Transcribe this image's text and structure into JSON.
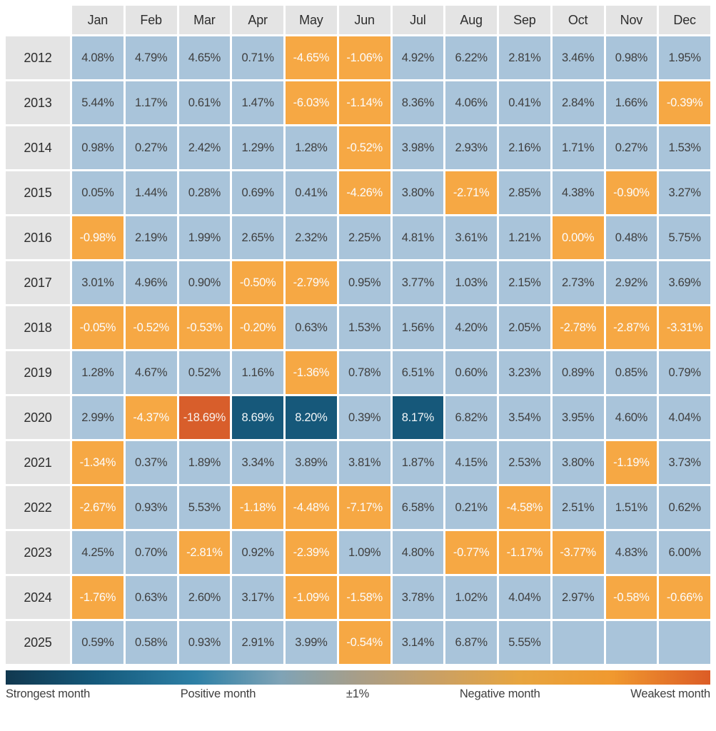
{
  "chart_data": {
    "type": "heatmap",
    "unit": "%",
    "columns": [
      "Jan",
      "Feb",
      "Mar",
      "Apr",
      "May",
      "Jun",
      "Jul",
      "Aug",
      "Sep",
      "Oct",
      "Nov",
      "Dec"
    ],
    "rows": [
      {
        "year": "2012",
        "values": [
          4.08,
          4.79,
          4.65,
          0.71,
          -4.65,
          -1.06,
          4.92,
          6.22,
          2.81,
          3.46,
          0.98,
          1.95
        ],
        "tones": [
          "pos",
          "pos",
          "pos",
          "pos",
          "neg",
          "neg",
          "pos",
          "pos",
          "pos",
          "pos",
          "pos",
          "pos"
        ]
      },
      {
        "year": "2013",
        "values": [
          5.44,
          1.17,
          0.61,
          1.47,
          -6.03,
          -1.14,
          8.36,
          4.06,
          0.41,
          2.84,
          1.66,
          -0.39
        ],
        "tones": [
          "pos",
          "pos",
          "pos",
          "pos",
          "neg",
          "neg",
          "pos",
          "pos",
          "pos",
          "pos",
          "pos",
          "neg"
        ]
      },
      {
        "year": "2014",
        "values": [
          0.98,
          0.27,
          2.42,
          1.29,
          1.28,
          -0.52,
          3.98,
          2.93,
          2.16,
          1.71,
          0.27,
          1.53
        ],
        "tones": [
          "pos",
          "pos",
          "pos",
          "pos",
          "pos",
          "neg",
          "pos",
          "pos",
          "pos",
          "pos",
          "pos",
          "pos"
        ]
      },
      {
        "year": "2015",
        "values": [
          0.05,
          1.44,
          0.28,
          0.69,
          0.41,
          -4.26,
          3.8,
          -2.71,
          2.85,
          4.38,
          -0.9,
          3.27
        ],
        "tones": [
          "pos",
          "pos",
          "pos",
          "pos",
          "pos",
          "neg",
          "pos",
          "neg",
          "pos",
          "pos",
          "neg",
          "pos"
        ]
      },
      {
        "year": "2016",
        "values": [
          -0.98,
          2.19,
          1.99,
          2.65,
          2.32,
          2.25,
          4.81,
          3.61,
          1.21,
          0.0,
          0.48,
          5.75
        ],
        "tones": [
          "neg",
          "pos",
          "pos",
          "pos",
          "pos",
          "pos",
          "pos",
          "pos",
          "pos",
          "neg",
          "pos",
          "pos"
        ]
      },
      {
        "year": "2017",
        "values": [
          3.01,
          4.96,
          0.9,
          -0.5,
          -2.79,
          0.95,
          3.77,
          1.03,
          2.15,
          2.73,
          2.92,
          3.69
        ],
        "tones": [
          "pos",
          "pos",
          "pos",
          "neg",
          "neg",
          "pos",
          "pos",
          "pos",
          "pos",
          "pos",
          "pos",
          "pos"
        ]
      },
      {
        "year": "2018",
        "values": [
          -0.05,
          -0.52,
          -0.53,
          -0.2,
          0.63,
          1.53,
          1.56,
          4.2,
          2.05,
          -2.78,
          -2.87,
          -3.31
        ],
        "tones": [
          "neg",
          "neg",
          "neg",
          "neg",
          "pos",
          "pos",
          "pos",
          "pos",
          "pos",
          "neg",
          "neg",
          "neg"
        ]
      },
      {
        "year": "2019",
        "values": [
          1.28,
          4.67,
          0.52,
          1.16,
          -1.36,
          0.78,
          6.51,
          0.6,
          3.23,
          0.89,
          0.85,
          0.79
        ],
        "tones": [
          "pos",
          "pos",
          "pos",
          "pos",
          "neg",
          "pos",
          "pos",
          "pos",
          "pos",
          "pos",
          "pos",
          "pos"
        ]
      },
      {
        "year": "2020",
        "values": [
          2.99,
          -4.37,
          -18.69,
          8.69,
          8.2,
          0.39,
          8.17,
          6.82,
          3.54,
          3.95,
          4.6,
          4.04
        ],
        "tones": [
          "pos",
          "neg",
          "weak",
          "strong",
          "strong",
          "pos",
          "strong",
          "pos",
          "pos",
          "pos",
          "pos",
          "pos"
        ]
      },
      {
        "year": "2021",
        "values": [
          -1.34,
          0.37,
          1.89,
          3.34,
          3.89,
          3.81,
          1.87,
          4.15,
          2.53,
          3.8,
          -1.19,
          3.73
        ],
        "tones": [
          "neg",
          "pos",
          "pos",
          "pos",
          "pos",
          "pos",
          "pos",
          "pos",
          "pos",
          "pos",
          "neg",
          "pos"
        ]
      },
      {
        "year": "2022",
        "values": [
          -2.67,
          0.93,
          5.53,
          -1.18,
          -4.48,
          -7.17,
          6.58,
          0.21,
          -4.58,
          2.51,
          1.51,
          0.62
        ],
        "tones": [
          "neg",
          "pos",
          "pos",
          "neg",
          "neg",
          "neg",
          "pos",
          "pos",
          "neg",
          "pos",
          "pos",
          "pos"
        ]
      },
      {
        "year": "2023",
        "values": [
          4.25,
          0.7,
          -2.81,
          0.92,
          -2.39,
          1.09,
          4.8,
          -0.77,
          -1.17,
          -3.77,
          4.83,
          6.0
        ],
        "tones": [
          "pos",
          "pos",
          "neg",
          "pos",
          "neg",
          "pos",
          "pos",
          "neg",
          "neg",
          "neg",
          "pos",
          "pos"
        ]
      },
      {
        "year": "2024",
        "values": [
          -1.76,
          0.63,
          2.6,
          3.17,
          -1.09,
          -1.58,
          3.78,
          1.02,
          4.04,
          2.97,
          -0.58,
          -0.66
        ],
        "tones": [
          "neg",
          "pos",
          "pos",
          "pos",
          "neg",
          "neg",
          "pos",
          "pos",
          "pos",
          "pos",
          "neg",
          "neg"
        ]
      },
      {
        "year": "2025",
        "values": [
          0.59,
          0.58,
          0.93,
          2.91,
          3.99,
          -0.54,
          3.14,
          6.87,
          5.55,
          null,
          null,
          null
        ],
        "tones": [
          "pos",
          "pos",
          "pos",
          "pos",
          "pos",
          "neg",
          "pos",
          "pos",
          "pos",
          "empty",
          "empty",
          "empty"
        ]
      }
    ]
  },
  "legend": {
    "labels": [
      "Strongest month",
      "Positive month",
      "±1%",
      "Negative month",
      "Weakest month"
    ],
    "gradient_stops": [
      "#11384f 0%",
      "#155a7c 13%",
      "#2e80a6 27%",
      "#7fa3b6 39%",
      "#a89e88 50%",
      "#c9a065 61%",
      "#e8a53f 73%",
      "#f0992f 86%",
      "#dc5c26 100%"
    ]
  },
  "colors": {
    "positive": "#a9c4da",
    "negative": "#f6a844",
    "strongest": "#16587a",
    "weakest": "#d85e2b",
    "header_bg": "#e4e4e4",
    "text_dark": "#3f3f3f",
    "text_light": "#fcfcfc"
  }
}
